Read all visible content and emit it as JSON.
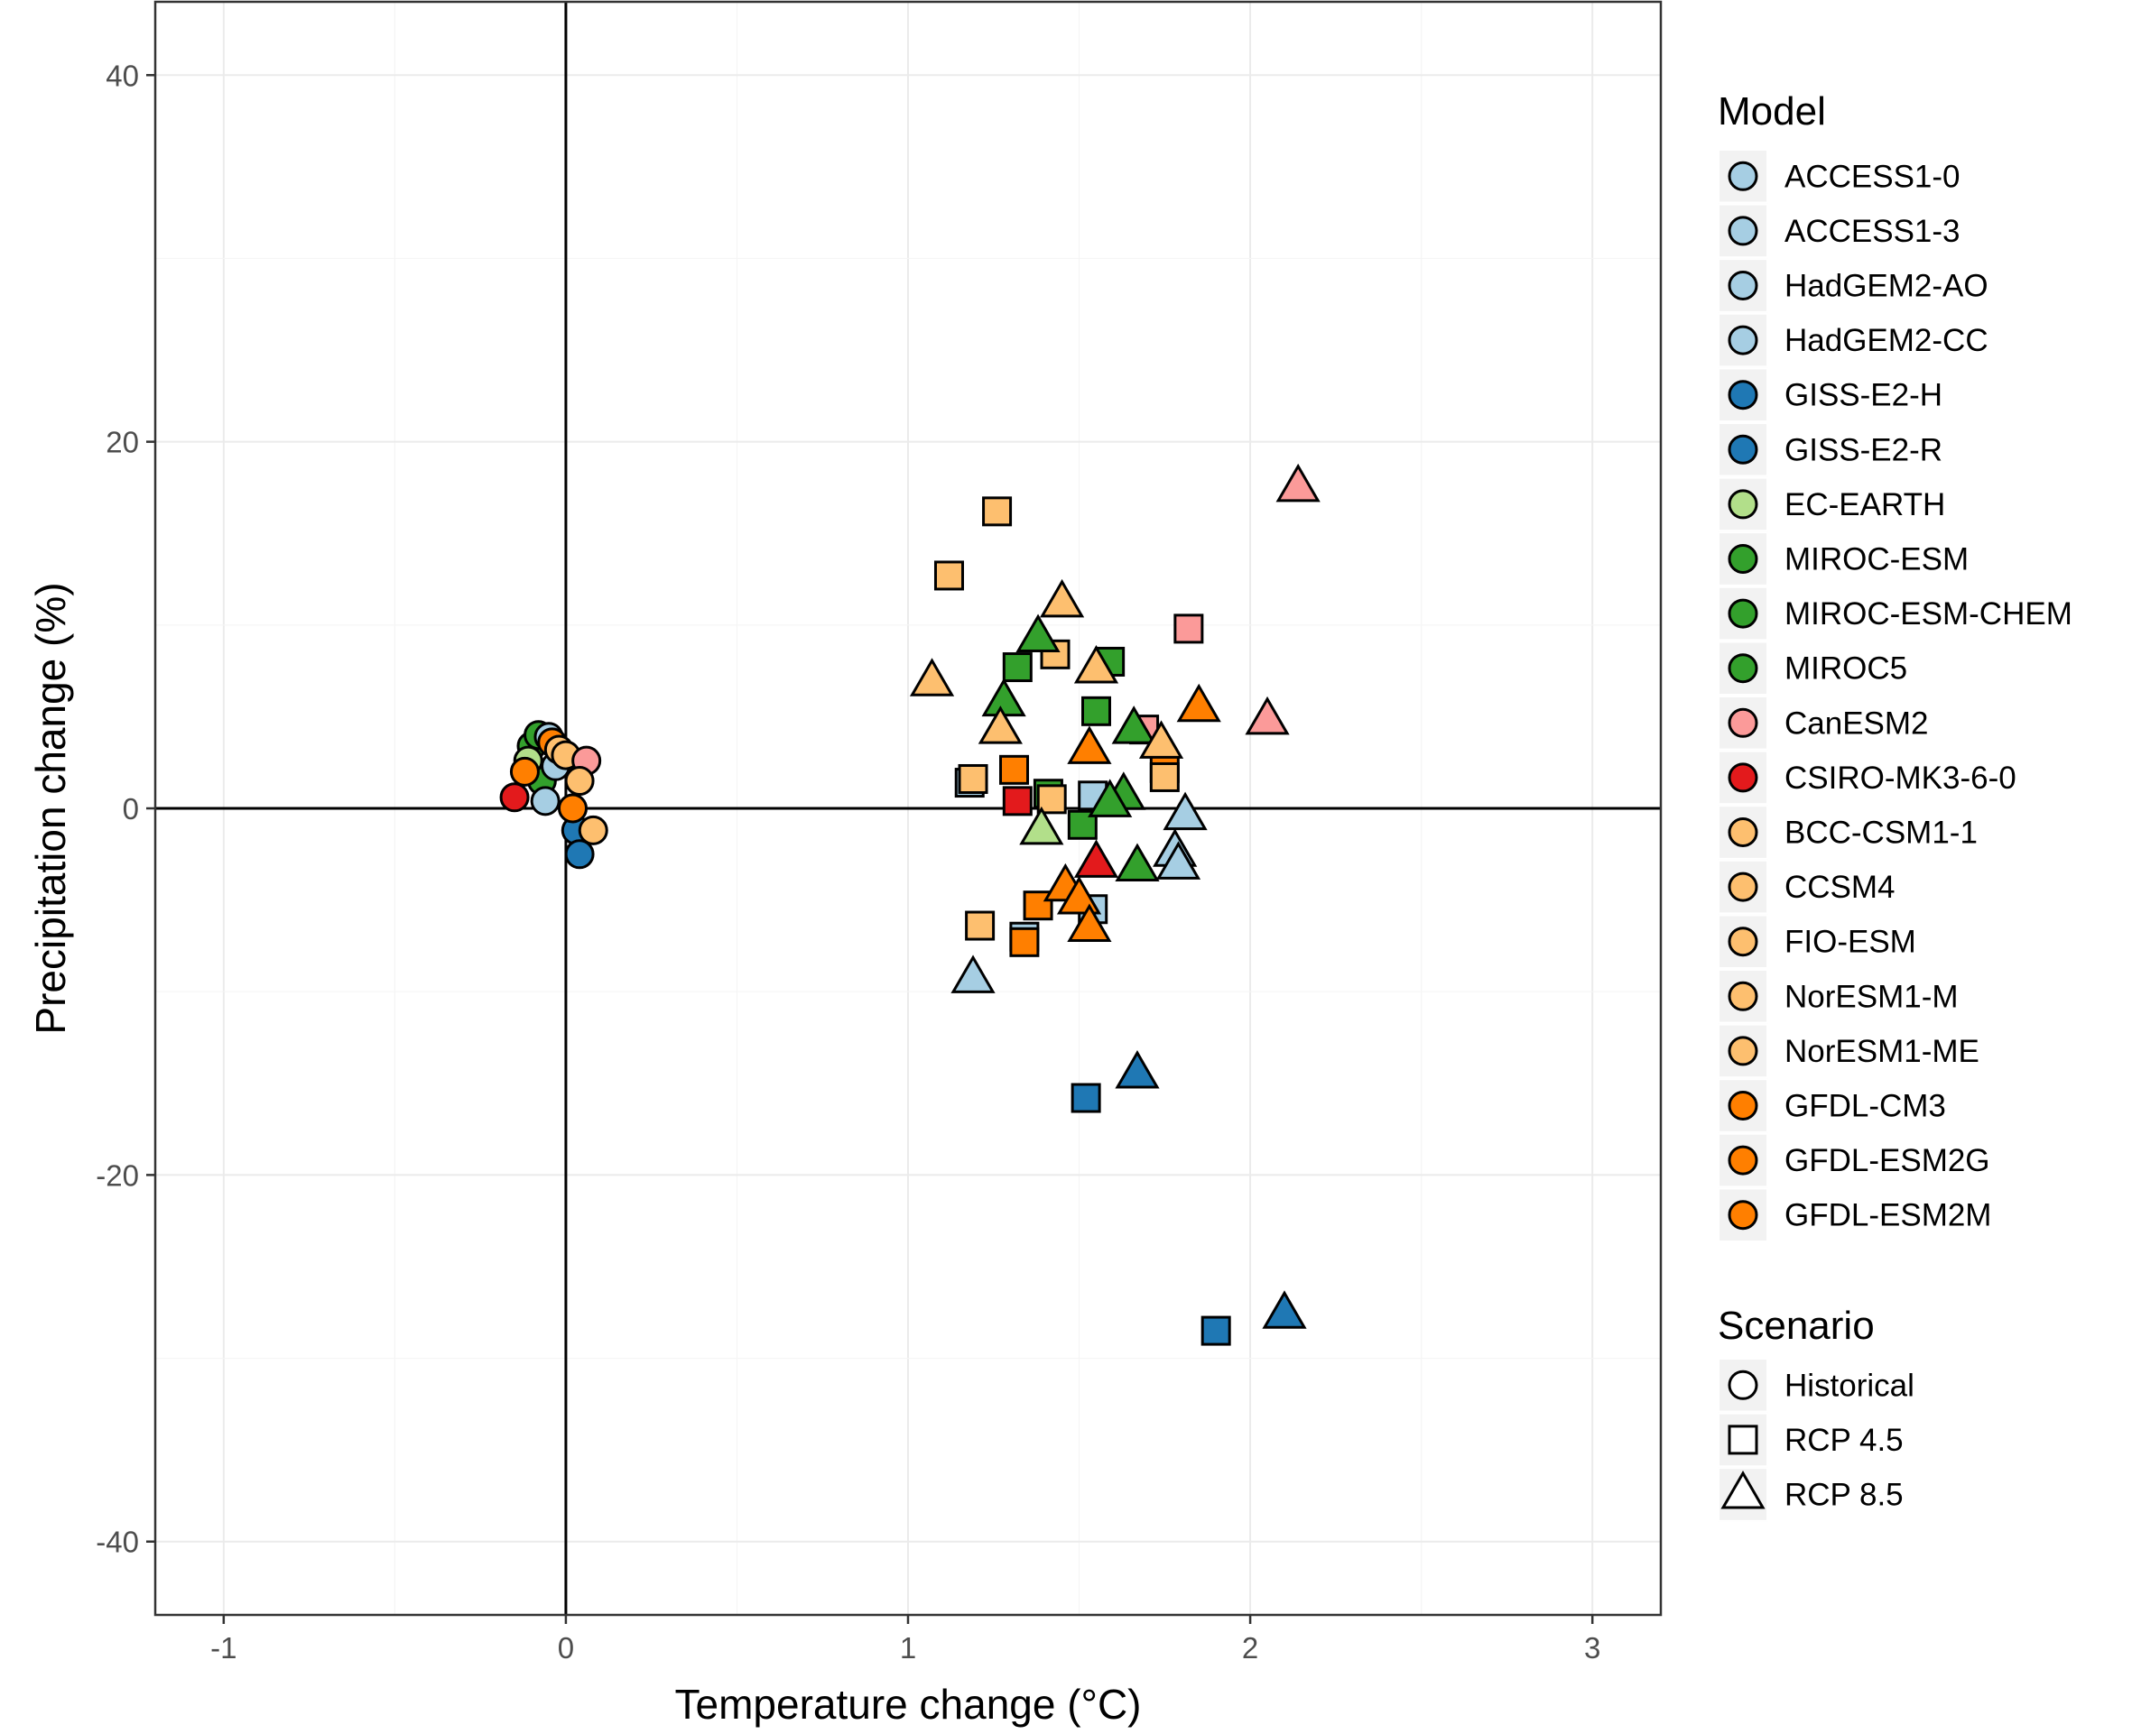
{
  "chart_data": {
    "type": "scatter",
    "xlabel": "Temperature change (°C)",
    "ylabel": "Precipitation change (%)",
    "xlim": [
      -1.2,
      3.2
    ],
    "ylim": [
      -44,
      44
    ],
    "x_ticks": [
      -1,
      0,
      1,
      2,
      3
    ],
    "x_tick_labels": [
      "-1",
      "0",
      "1",
      "2",
      "3"
    ],
    "y_ticks": [
      -40,
      -20,
      0,
      20,
      40
    ],
    "y_tick_labels": [
      "-40",
      "-20",
      "0",
      "20",
      "40"
    ],
    "grid": true,
    "reference_lines": {
      "x": 0,
      "y": 0
    },
    "legend": {
      "placement": "right",
      "model_title": "Model",
      "scenario_title": "Scenario",
      "models": [
        {
          "name": "ACCESS1-0",
          "color": "#a6cee3"
        },
        {
          "name": "ACCESS1-3",
          "color": "#a6cee3"
        },
        {
          "name": "HadGEM2-AO",
          "color": "#a6cee3"
        },
        {
          "name": "HadGEM2-CC",
          "color": "#a6cee3"
        },
        {
          "name": "GISS-E2-H",
          "color": "#1f78b4"
        },
        {
          "name": "GISS-E2-R",
          "color": "#1f78b4"
        },
        {
          "name": "EC-EARTH",
          "color": "#b2df8a"
        },
        {
          "name": "MIROC-ESM",
          "color": "#33a02c"
        },
        {
          "name": "MIROC-ESM-CHEM",
          "color": "#33a02c"
        },
        {
          "name": "MIROC5",
          "color": "#33a02c"
        },
        {
          "name": "CanESM2",
          "color": "#fb9a99"
        },
        {
          "name": "CSIRO-MK3-6-0",
          "color": "#e31a1c"
        },
        {
          "name": "BCC-CSM1-1",
          "color": "#fdbf6f"
        },
        {
          "name": "CCSM4",
          "color": "#fdbf6f"
        },
        {
          "name": "FIO-ESM",
          "color": "#fdbf6f"
        },
        {
          "name": "NorESM1-M",
          "color": "#fdbf6f"
        },
        {
          "name": "NorESM1-ME",
          "color": "#fdbf6f"
        },
        {
          "name": "GFDL-CM3",
          "color": "#ff7f00"
        },
        {
          "name": "GFDL-ESM2G",
          "color": "#ff7f00"
        },
        {
          "name": "GFDL-ESM2M",
          "color": "#ff7f00"
        }
      ],
      "scenarios": [
        {
          "name": "Historical",
          "shape": "circle"
        },
        {
          "name": "RCP 4.5",
          "shape": "square"
        },
        {
          "name": "RCP 8.5",
          "shape": "triangle"
        }
      ]
    },
    "points": [
      {
        "x": -0.15,
        "y": 0.6,
        "shape": "circle",
        "color": "#e31a1c"
      },
      {
        "x": -0.1,
        "y": 3.4,
        "shape": "circle",
        "color": "#33a02c"
      },
      {
        "x": -0.08,
        "y": 4.0,
        "shape": "circle",
        "color": "#33a02c"
      },
      {
        "x": -0.07,
        "y": 1.5,
        "shape": "circle",
        "color": "#33a02c"
      },
      {
        "x": -0.11,
        "y": 2.6,
        "shape": "circle",
        "color": "#b2df8a"
      },
      {
        "x": -0.06,
        "y": 0.4,
        "shape": "circle",
        "color": "#a6cee3"
      },
      {
        "x": -0.05,
        "y": 3.9,
        "shape": "circle",
        "color": "#a6cee3"
      },
      {
        "x": -0.03,
        "y": 2.3,
        "shape": "circle",
        "color": "#a6cee3"
      },
      {
        "x": -0.12,
        "y": 2.0,
        "shape": "circle",
        "color": "#ff7f00"
      },
      {
        "x": -0.04,
        "y": 3.6,
        "shape": "circle",
        "color": "#ff7f00"
      },
      {
        "x": -0.02,
        "y": 3.2,
        "shape": "circle",
        "color": "#fdbf6f"
      },
      {
        "x": 0.0,
        "y": 2.9,
        "shape": "circle",
        "color": "#fdbf6f"
      },
      {
        "x": 0.06,
        "y": 2.6,
        "shape": "circle",
        "color": "#fb9a99"
      },
      {
        "x": 0.04,
        "y": 1.5,
        "shape": "circle",
        "color": "#fdbf6f"
      },
      {
        "x": 0.03,
        "y": -1.2,
        "shape": "circle",
        "color": "#1f78b4"
      },
      {
        "x": 0.04,
        "y": -2.5,
        "shape": "circle",
        "color": "#1f78b4"
      },
      {
        "x": 0.08,
        "y": -1.2,
        "shape": "circle",
        "color": "#fdbf6f"
      },
      {
        "x": 0.02,
        "y": 0.0,
        "shape": "circle",
        "color": "#ff7f00"
      },
      {
        "x": 1.26,
        "y": 16.2,
        "shape": "square",
        "color": "#fdbf6f"
      },
      {
        "x": 1.12,
        "y": 12.7,
        "shape": "square",
        "color": "#fdbf6f"
      },
      {
        "x": 1.43,
        "y": 8.4,
        "shape": "square",
        "color": "#fdbf6f"
      },
      {
        "x": 1.32,
        "y": 7.7,
        "shape": "square",
        "color": "#33a02c"
      },
      {
        "x": 1.59,
        "y": 8.0,
        "shape": "square",
        "color": "#33a02c"
      },
      {
        "x": 1.55,
        "y": 5.3,
        "shape": "square",
        "color": "#33a02c"
      },
      {
        "x": 1.82,
        "y": 9.8,
        "shape": "square",
        "color": "#fb9a99"
      },
      {
        "x": 1.69,
        "y": 4.3,
        "shape": "square",
        "color": "#fb9a99"
      },
      {
        "x": 1.18,
        "y": 1.4,
        "shape": "square",
        "color": "#a6cee3"
      },
      {
        "x": 1.19,
        "y": 1.6,
        "shape": "square",
        "color": "#fdbf6f"
      },
      {
        "x": 1.31,
        "y": 2.1,
        "shape": "square",
        "color": "#ff7f00"
      },
      {
        "x": 1.32,
        "y": 0.4,
        "shape": "square",
        "color": "#e31a1c"
      },
      {
        "x": 1.41,
        "y": 0.8,
        "shape": "square",
        "color": "#33a02c"
      },
      {
        "x": 1.42,
        "y": 0.5,
        "shape": "square",
        "color": "#fdbf6f"
      },
      {
        "x": 1.54,
        "y": 0.7,
        "shape": "square",
        "color": "#a6cee3"
      },
      {
        "x": 1.75,
        "y": 2.2,
        "shape": "square",
        "color": "#ff7f00"
      },
      {
        "x": 1.75,
        "y": 1.7,
        "shape": "square",
        "color": "#fdbf6f"
      },
      {
        "x": 1.51,
        "y": -0.9,
        "shape": "square",
        "color": "#33a02c"
      },
      {
        "x": 1.21,
        "y": -6.4,
        "shape": "square",
        "color": "#fdbf6f"
      },
      {
        "x": 1.34,
        "y": -7.0,
        "shape": "square",
        "color": "#a6cee3"
      },
      {
        "x": 1.34,
        "y": -7.3,
        "shape": "square",
        "color": "#ff7f00"
      },
      {
        "x": 1.38,
        "y": -5.3,
        "shape": "square",
        "color": "#ff7f00"
      },
      {
        "x": 1.54,
        "y": -5.5,
        "shape": "square",
        "color": "#a6cee3"
      },
      {
        "x": 1.52,
        "y": -15.8,
        "shape": "square",
        "color": "#1f78b4"
      },
      {
        "x": 1.9,
        "y": -28.5,
        "shape": "square",
        "color": "#1f78b4"
      },
      {
        "x": 2.14,
        "y": 17.5,
        "shape": "triangle",
        "color": "#fb9a99"
      },
      {
        "x": 1.45,
        "y": 11.2,
        "shape": "triangle",
        "color": "#fdbf6f"
      },
      {
        "x": 1.07,
        "y": 6.9,
        "shape": "triangle",
        "color": "#fdbf6f"
      },
      {
        "x": 1.38,
        "y": 9.3,
        "shape": "triangle",
        "color": "#33a02c"
      },
      {
        "x": 1.28,
        "y": 5.8,
        "shape": "triangle",
        "color": "#33a02c"
      },
      {
        "x": 1.27,
        "y": 4.3,
        "shape": "triangle",
        "color": "#fdbf6f"
      },
      {
        "x": 1.55,
        "y": 7.6,
        "shape": "triangle",
        "color": "#fdbf6f"
      },
      {
        "x": 1.85,
        "y": 5.5,
        "shape": "triangle",
        "color": "#ff7f00"
      },
      {
        "x": 2.05,
        "y": 4.8,
        "shape": "triangle",
        "color": "#fb9a99"
      },
      {
        "x": 1.66,
        "y": 4.3,
        "shape": "triangle",
        "color": "#33a02c"
      },
      {
        "x": 1.74,
        "y": 3.5,
        "shape": "triangle",
        "color": "#fdbf6f"
      },
      {
        "x": 1.53,
        "y": 3.2,
        "shape": "triangle",
        "color": "#ff7f00"
      },
      {
        "x": 1.63,
        "y": 0.7,
        "shape": "triangle",
        "color": "#33a02c"
      },
      {
        "x": 1.59,
        "y": 0.3,
        "shape": "triangle",
        "color": "#33a02c"
      },
      {
        "x": 1.81,
        "y": -0.4,
        "shape": "triangle",
        "color": "#a6cee3"
      },
      {
        "x": 1.39,
        "y": -1.2,
        "shape": "triangle",
        "color": "#b2df8a"
      },
      {
        "x": 1.55,
        "y": -3.0,
        "shape": "triangle",
        "color": "#e31a1c"
      },
      {
        "x": 1.67,
        "y": -3.2,
        "shape": "triangle",
        "color": "#33a02c"
      },
      {
        "x": 1.78,
        "y": -2.4,
        "shape": "triangle",
        "color": "#a6cee3"
      },
      {
        "x": 1.79,
        "y": -3.1,
        "shape": "triangle",
        "color": "#a6cee3"
      },
      {
        "x": 1.46,
        "y": -4.3,
        "shape": "triangle",
        "color": "#ff7f00"
      },
      {
        "x": 1.5,
        "y": -5.0,
        "shape": "triangle",
        "color": "#ff7f00"
      },
      {
        "x": 1.53,
        "y": -6.5,
        "shape": "triangle",
        "color": "#ff7f00"
      },
      {
        "x": 1.19,
        "y": -9.3,
        "shape": "triangle",
        "color": "#a6cee3"
      },
      {
        "x": 1.67,
        "y": -14.5,
        "shape": "triangle",
        "color": "#1f78b4"
      },
      {
        "x": 2.1,
        "y": -27.6,
        "shape": "triangle",
        "color": "#1f78b4"
      }
    ]
  }
}
